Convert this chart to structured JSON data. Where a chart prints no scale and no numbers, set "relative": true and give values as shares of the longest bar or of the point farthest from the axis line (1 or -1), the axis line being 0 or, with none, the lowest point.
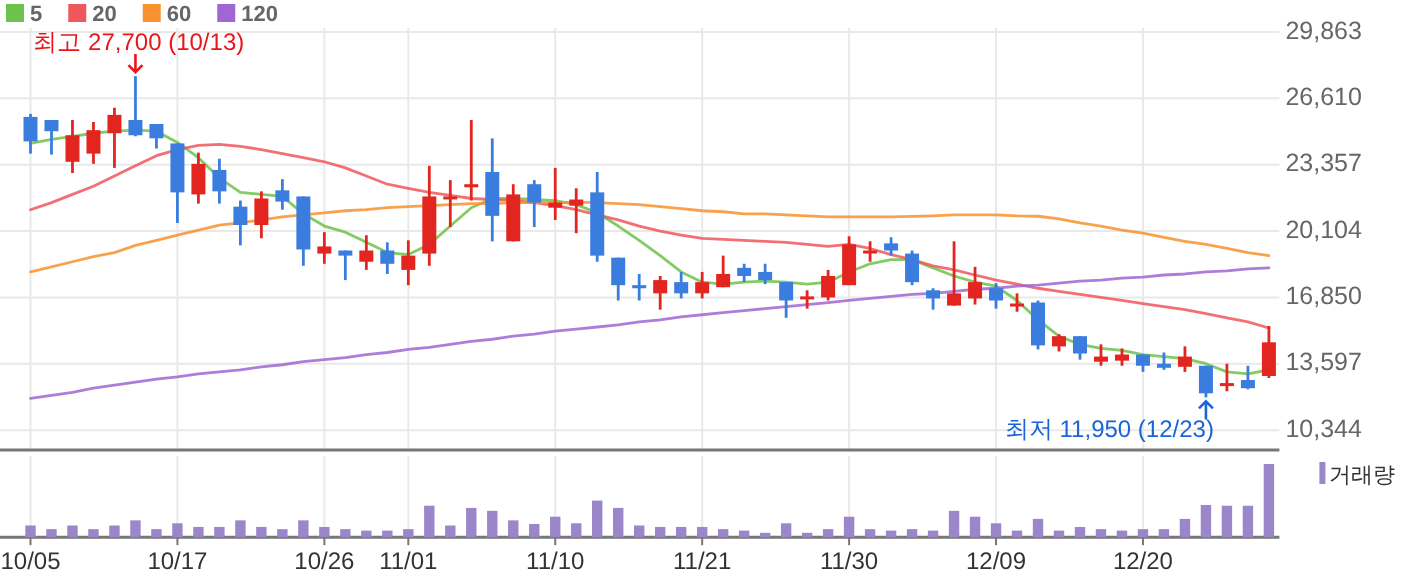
{
  "chart_data": [
    {
      "type": "candlestick",
      "categories": [
        null,
        null,
        null,
        null,
        null,
        null,
        null,
        null,
        null,
        null,
        null,
        null,
        null,
        null,
        null,
        null,
        null,
        null,
        null,
        null,
        null,
        null,
        null,
        null,
        null,
        null,
        null,
        null,
        null,
        null,
        null,
        null,
        null,
        null,
        null,
        null,
        null,
        null,
        null,
        null,
        null,
        null,
        null,
        null,
        null,
        null,
        null,
        null,
        null,
        null,
        null,
        null,
        null,
        null,
        null,
        null,
        null,
        null,
        null,
        null
      ],
      "ohlc": [
        [
          25700,
          25850,
          23900,
          24500
        ],
        [
          25550,
          25550,
          23850,
          25000
        ],
        [
          23500,
          25550,
          22950,
          24800
        ],
        [
          23900,
          25450,
          23400,
          25050
        ],
        [
          24900,
          26150,
          23200,
          25800
        ],
        [
          25550,
          27700,
          24750,
          24800
        ],
        [
          25350,
          25350,
          24150,
          24650
        ],
        [
          24400,
          24400,
          20500,
          22000
        ],
        [
          21900,
          23950,
          21450,
          23400
        ],
        [
          23100,
          23650,
          21450,
          22050
        ],
        [
          21300,
          21600,
          19400,
          20400
        ],
        [
          20400,
          22050,
          19750,
          21700
        ],
        [
          22100,
          22650,
          21150,
          21550
        ],
        [
          21800,
          21800,
          18400,
          19200
        ],
        [
          19000,
          20050,
          18500,
          19350
        ],
        [
          19150,
          19150,
          17700,
          18900
        ],
        [
          18600,
          19900,
          18200,
          19150
        ],
        [
          19150,
          19550,
          18000,
          18500
        ],
        [
          18200,
          19650,
          17450,
          18900
        ],
        [
          19000,
          23300,
          18400,
          21800
        ],
        [
          21750,
          22600,
          20300,
          21800
        ],
        [
          22250,
          25550,
          21600,
          22400
        ],
        [
          23000,
          24650,
          19600,
          20850
        ],
        [
          19600,
          22400,
          19600,
          21900
        ],
        [
          22400,
          22600,
          20300,
          21500
        ],
        [
          21250,
          23200,
          20650,
          21500
        ],
        [
          21350,
          22200,
          20000,
          21650
        ],
        [
          22000,
          23000,
          18600,
          18900
        ],
        [
          18800,
          18800,
          16700,
          17450
        ],
        [
          17450,
          18000,
          16700,
          17300
        ],
        [
          17050,
          17900,
          16250,
          17700
        ],
        [
          17600,
          18100,
          16800,
          17050
        ],
        [
          17050,
          18100,
          16800,
          17600
        ],
        [
          17350,
          18900,
          17350,
          18000
        ],
        [
          18300,
          18500,
          17600,
          17900
        ],
        [
          18100,
          18500,
          17500,
          17700
        ],
        [
          17600,
          17600,
          15850,
          16700
        ],
        [
          16800,
          17200,
          16300,
          16900
        ],
        [
          16850,
          18200,
          16700,
          17900
        ],
        [
          17450,
          19850,
          17450,
          19450
        ],
        [
          19100,
          19600,
          18600,
          19150
        ],
        [
          19500,
          19800,
          18900,
          19150
        ],
        [
          19000,
          19150,
          17450,
          17600
        ],
        [
          17200,
          17300,
          16250,
          16800
        ],
        [
          16450,
          19600,
          16450,
          17050
        ],
        [
          16800,
          18350,
          16500,
          17600
        ],
        [
          17300,
          17550,
          16300,
          16700
        ],
        [
          16500,
          17050,
          16150,
          16550
        ],
        [
          16600,
          16700,
          14300,
          14500
        ],
        [
          14450,
          15050,
          14200,
          14950
        ],
        [
          14950,
          14950,
          13800,
          14100
        ],
        [
          13700,
          14550,
          13500,
          13950
        ],
        [
          13750,
          14350,
          13500,
          14050
        ],
        [
          14050,
          14050,
          13200,
          13500
        ],
        [
          13600,
          14150,
          13300,
          13400
        ],
        [
          13450,
          14450,
          13200,
          13950
        ],
        [
          13500,
          13500,
          11950,
          12150
        ],
        [
          12600,
          13600,
          12250,
          12650
        ],
        [
          12800,
          13500,
          12350,
          12400
        ],
        [
          13000,
          15450,
          12900,
          14650
        ]
      ],
      "series": [
        {
          "type": "line",
          "name": "5",
          "color": "#6cc24a",
          "values": [
            24400,
            24600,
            24750,
            24900,
            25000,
            25050,
            25000,
            24450,
            23700,
            22700,
            22000,
            21900,
            21800,
            20950,
            20350,
            20050,
            19550,
            19050,
            18950,
            19450,
            20350,
            21250,
            21700,
            21700,
            21650,
            21600,
            21400,
            21000,
            20350,
            19650,
            18900,
            18100,
            17600,
            17500,
            17600,
            17650,
            17600,
            17500,
            17600,
            18100,
            18500,
            18700,
            18700,
            18300,
            17900,
            17600,
            17400,
            16700,
            15750,
            14950,
            14550,
            14350,
            14250,
            14050,
            13950,
            13850,
            13600,
            13200,
            13100,
            13300
          ]
        },
        {
          "type": "line",
          "name": "20",
          "color": "#f0575c",
          "values": [
            21150,
            21500,
            21900,
            22300,
            22800,
            23300,
            23800,
            24100,
            24300,
            24350,
            24250,
            24100,
            23900,
            23700,
            23500,
            23200,
            22800,
            22400,
            22200,
            22000,
            21850,
            21700,
            21650,
            21600,
            21500,
            21350,
            21150,
            20900,
            20650,
            20350,
            20100,
            19900,
            19750,
            19700,
            19650,
            19600,
            19550,
            19450,
            19350,
            19450,
            19250,
            18950,
            18700,
            18400,
            18200,
            17950,
            17700,
            17500,
            17300,
            17150,
            17000,
            16850,
            16700,
            16550,
            16400,
            16250,
            16050,
            15850,
            15650,
            15350
          ]
        },
        {
          "type": "line",
          "name": "60",
          "color": "#f7922e",
          "values": [
            18100,
            18350,
            18600,
            18850,
            19050,
            19400,
            19650,
            19900,
            20150,
            20400,
            20500,
            20650,
            20800,
            20900,
            21000,
            21100,
            21150,
            21250,
            21300,
            21350,
            21400,
            21450,
            21450,
            21500,
            21500,
            21500,
            21520,
            21500,
            21450,
            21400,
            21300,
            21200,
            21100,
            21050,
            20950,
            20950,
            20900,
            20850,
            20800,
            20800,
            20800,
            20800,
            20820,
            20850,
            20900,
            20900,
            20900,
            20850,
            20830,
            20700,
            20500,
            20350,
            20150,
            20000,
            19800,
            19600,
            19450,
            19250,
            19050,
            18900
          ]
        },
        {
          "type": "line",
          "name": "120",
          "color": "#a066d3",
          "values": [
            11900,
            12050,
            12200,
            12400,
            12550,
            12700,
            12850,
            12950,
            13100,
            13200,
            13300,
            13450,
            13550,
            13700,
            13800,
            13900,
            14050,
            14150,
            14300,
            14400,
            14550,
            14700,
            14800,
            14950,
            15050,
            15200,
            15300,
            15400,
            15500,
            15650,
            15750,
            15900,
            16000,
            16100,
            16200,
            16300,
            16400,
            16500,
            16600,
            16700,
            16800,
            16900,
            17000,
            17050,
            17150,
            17250,
            17300,
            17400,
            17450,
            17550,
            17650,
            17700,
            17800,
            17850,
            17950,
            18000,
            18100,
            18150,
            18250,
            18300
          ]
        }
      ],
      "ylim": [
        9370,
        29863
      ],
      "yticks": [
        {
          "value": 10344,
          "label": "10,344"
        },
        {
          "value": 13597,
          "label": "13,597"
        },
        {
          "value": 16850,
          "label": "16,850"
        },
        {
          "value": 20104,
          "label": "20,104"
        },
        {
          "value": 23357,
          "label": "23,357"
        },
        {
          "value": 26610,
          "label": "26,610"
        },
        {
          "value": 29863,
          "label": "29,863"
        }
      ],
      "grid": true,
      "legend": "top left",
      "tick_labels": "y",
      "annotations": [
        "최고 27,700 (10/13)",
        "최저 11,950 (12/23)"
      ]
    },
    {
      "type": "bar",
      "categories": [
        "10/05",
        null,
        null,
        null,
        null,
        null,
        null,
        "10/17",
        null,
        null,
        null,
        null,
        null,
        null,
        "10/26",
        null,
        null,
        null,
        "11/01",
        null,
        null,
        null,
        null,
        null,
        null,
        "11/10",
        null,
        null,
        null,
        null,
        null,
        null,
        "11/21",
        null,
        null,
        null,
        null,
        null,
        null,
        "11/30",
        null,
        null,
        null,
        null,
        null,
        null,
        "12/09",
        null,
        null,
        null,
        null,
        null,
        null,
        "12/20",
        null,
        null,
        null,
        null,
        null,
        null
      ],
      "series": [
        {
          "name": "거래량",
          "color": "#9b86c9",
          "values": [
            0.16,
            0.11,
            0.16,
            0.11,
            0.16,
            0.23,
            0.11,
            0.19,
            0.14,
            0.14,
            0.23,
            0.14,
            0.11,
            0.23,
            0.14,
            0.11,
            0.09,
            0.09,
            0.11,
            0.43,
            0.16,
            0.4,
            0.36,
            0.23,
            0.18,
            0.28,
            0.19,
            0.5,
            0.4,
            0.16,
            0.14,
            0.14,
            0.14,
            0.11,
            0.09,
            0.06,
            0.19,
            0.06,
            0.11,
            0.28,
            0.11,
            0.09,
            0.11,
            0.09,
            0.36,
            0.28,
            0.19,
            0.09,
            0.25,
            0.09,
            0.14,
            0.11,
            0.09,
            0.11,
            0.11,
            0.25,
            0.44,
            0.43,
            0.43,
            1
          ]
        }
      ],
      "relative": true,
      "grid": "x",
      "legend": "top right",
      "tick_labels": "x"
    }
  ]
}
